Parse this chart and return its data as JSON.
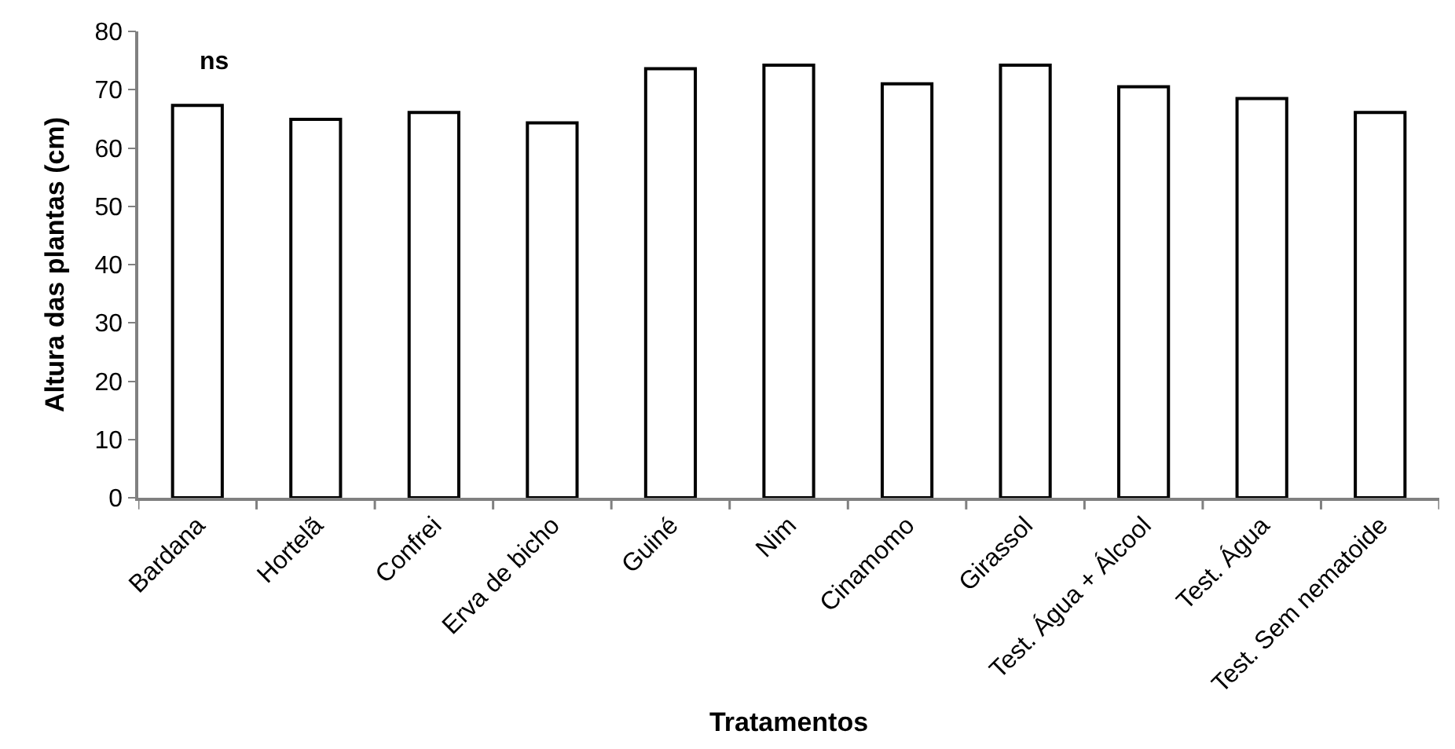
{
  "chart_data": {
    "type": "bar",
    "xlabel": "Tratamentos",
    "ylabel": "Altura das plantas (cm)",
    "categories": [
      "Bardana",
      "Hortelã",
      "Confrei",
      "Erva de bicho",
      "Guiné",
      "Nim",
      "Cinamomo",
      "Girassol",
      "Test. Água + Álcool",
      "Test. Água",
      "Test. Sem nematoide"
    ],
    "values": [
      67.3,
      64.9,
      66.1,
      64.3,
      73.6,
      74.2,
      71.0,
      74.2,
      70.5,
      68.5,
      66.1
    ],
    "color": "#ffffff",
    "ylim": [
      0,
      80
    ],
    "yticks": [
      0,
      10,
      20,
      30,
      40,
      50,
      60,
      70,
      80
    ],
    "annotations": [
      "ns"
    ]
  }
}
